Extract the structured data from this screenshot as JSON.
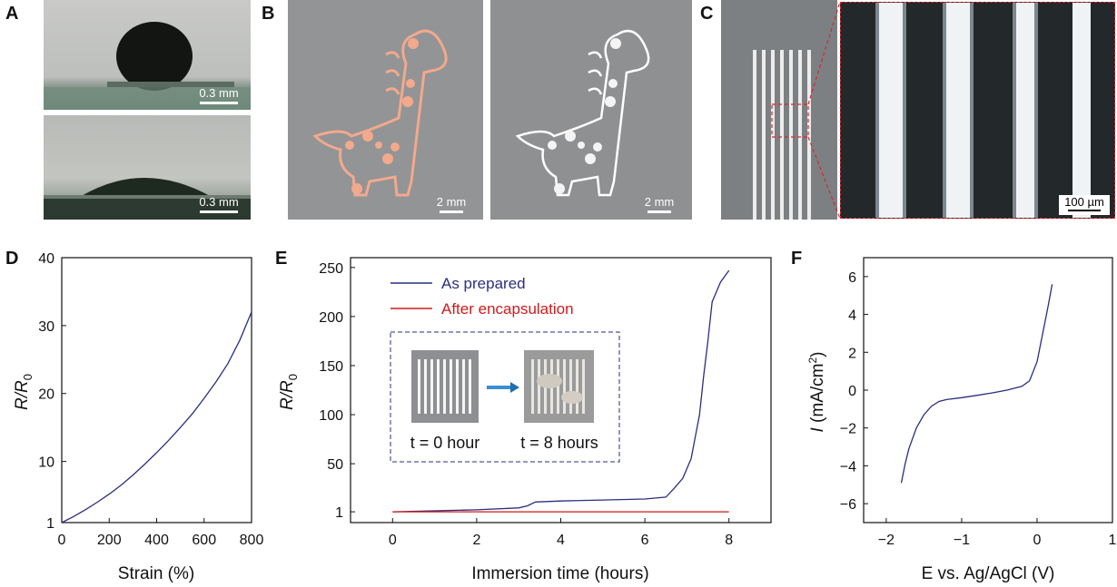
{
  "panels": {
    "A": {
      "letter": "A",
      "scale_top": "0.3 mm",
      "scale_bottom": "0.3 mm"
    },
    "B": {
      "letter": "B",
      "scale_left": "2 mm",
      "scale_right": "2 mm"
    },
    "C": {
      "letter": "C",
      "scale": "100 µm"
    },
    "D": {
      "letter": "D"
    },
    "E": {
      "letter": "E",
      "inset_left": "t = 0 hour",
      "inset_right": "t = 8 hours"
    },
    "F": {
      "letter": "F"
    }
  },
  "colors": {
    "blue": "#2b2e7e",
    "red": "#d11a1a",
    "salmon": "#f2a98c",
    "dashed_red": "#d9262b"
  },
  "chart_data": [
    {
      "id": "D",
      "type": "line",
      "xlabel": "Strain (%)",
      "ylabel_main": "R/R",
      "ylabel_sub": "0",
      "xlim": [
        0,
        800
      ],
      "ylim": [
        1,
        40
      ],
      "xticks": [
        0,
        200,
        400,
        600,
        800
      ],
      "yticks": [
        1,
        10,
        20,
        30,
        40
      ],
      "series": [
        {
          "color": "#2b2e7e",
          "x": [
            0,
            50,
            100,
            150,
            200,
            250,
            300,
            350,
            400,
            450,
            500,
            550,
            600,
            650,
            700,
            750,
            800
          ],
          "y": [
            1,
            1.9,
            2.9,
            4.0,
            5.2,
            6.5,
            8.0,
            9.6,
            11.3,
            13.1,
            15.0,
            17.0,
            19.3,
            21.7,
            24.4,
            27.8,
            32
          ]
        }
      ]
    },
    {
      "id": "E",
      "type": "line",
      "xlabel": "Immersion time (hours)",
      "ylabel_main": "R/R",
      "ylabel_sub": "0",
      "xlim": [
        -1,
        9
      ],
      "ylim": [
        -10,
        260
      ],
      "xticks": [
        0,
        2,
        4,
        6,
        8
      ],
      "yticks": [
        1,
        50,
        100,
        150,
        200,
        250
      ],
      "legend": [
        "As prepared",
        "After encapsulation"
      ],
      "series": [
        {
          "name": "As prepared",
          "color": "#2b2e7e",
          "x": [
            0,
            1,
            2,
            3,
            3.2,
            3.4,
            4,
            5,
            6,
            6.5,
            6.7,
            6.9,
            7.1,
            7.3,
            7.4,
            7.5,
            7.6,
            7.7,
            7.8,
            8.0
          ],
          "y": [
            1,
            2,
            3,
            5,
            7,
            11,
            12,
            13,
            14,
            16,
            25,
            35,
            55,
            100,
            140,
            175,
            215,
            225,
            235,
            247
          ]
        },
        {
          "name": "After encapsulation",
          "color": "#d11a1a",
          "x": [
            0,
            8
          ],
          "y": [
            1,
            1
          ]
        }
      ]
    },
    {
      "id": "F",
      "type": "line",
      "xlabel": "E vs. Ag/AgCl (V)",
      "ylabel_main": "I",
      "ylabel_rest": " (mA/cm",
      "ylabel_sup": "2",
      "xlim": [
        -2.3,
        1.0
      ],
      "ylim": [
        -7,
        7
      ],
      "xticks": [
        -2,
        -1,
        0,
        1
      ],
      "yticks": [
        -6,
        -4,
        -2,
        0,
        2,
        4,
        6
      ],
      "series": [
        {
          "color": "#2b2e7e",
          "x": [
            -1.8,
            -1.75,
            -1.7,
            -1.6,
            -1.5,
            -1.4,
            -1.3,
            -1.2,
            -1.0,
            -0.8,
            -0.6,
            -0.4,
            -0.2,
            -0.1,
            0.0,
            0.05,
            0.1,
            0.15,
            0.2
          ],
          "y": [
            -4.9,
            -3.9,
            -3.1,
            -2.0,
            -1.3,
            -0.85,
            -0.6,
            -0.5,
            -0.4,
            -0.28,
            -0.15,
            0.0,
            0.2,
            0.5,
            1.5,
            2.5,
            3.5,
            4.5,
            5.6
          ]
        }
      ]
    }
  ]
}
